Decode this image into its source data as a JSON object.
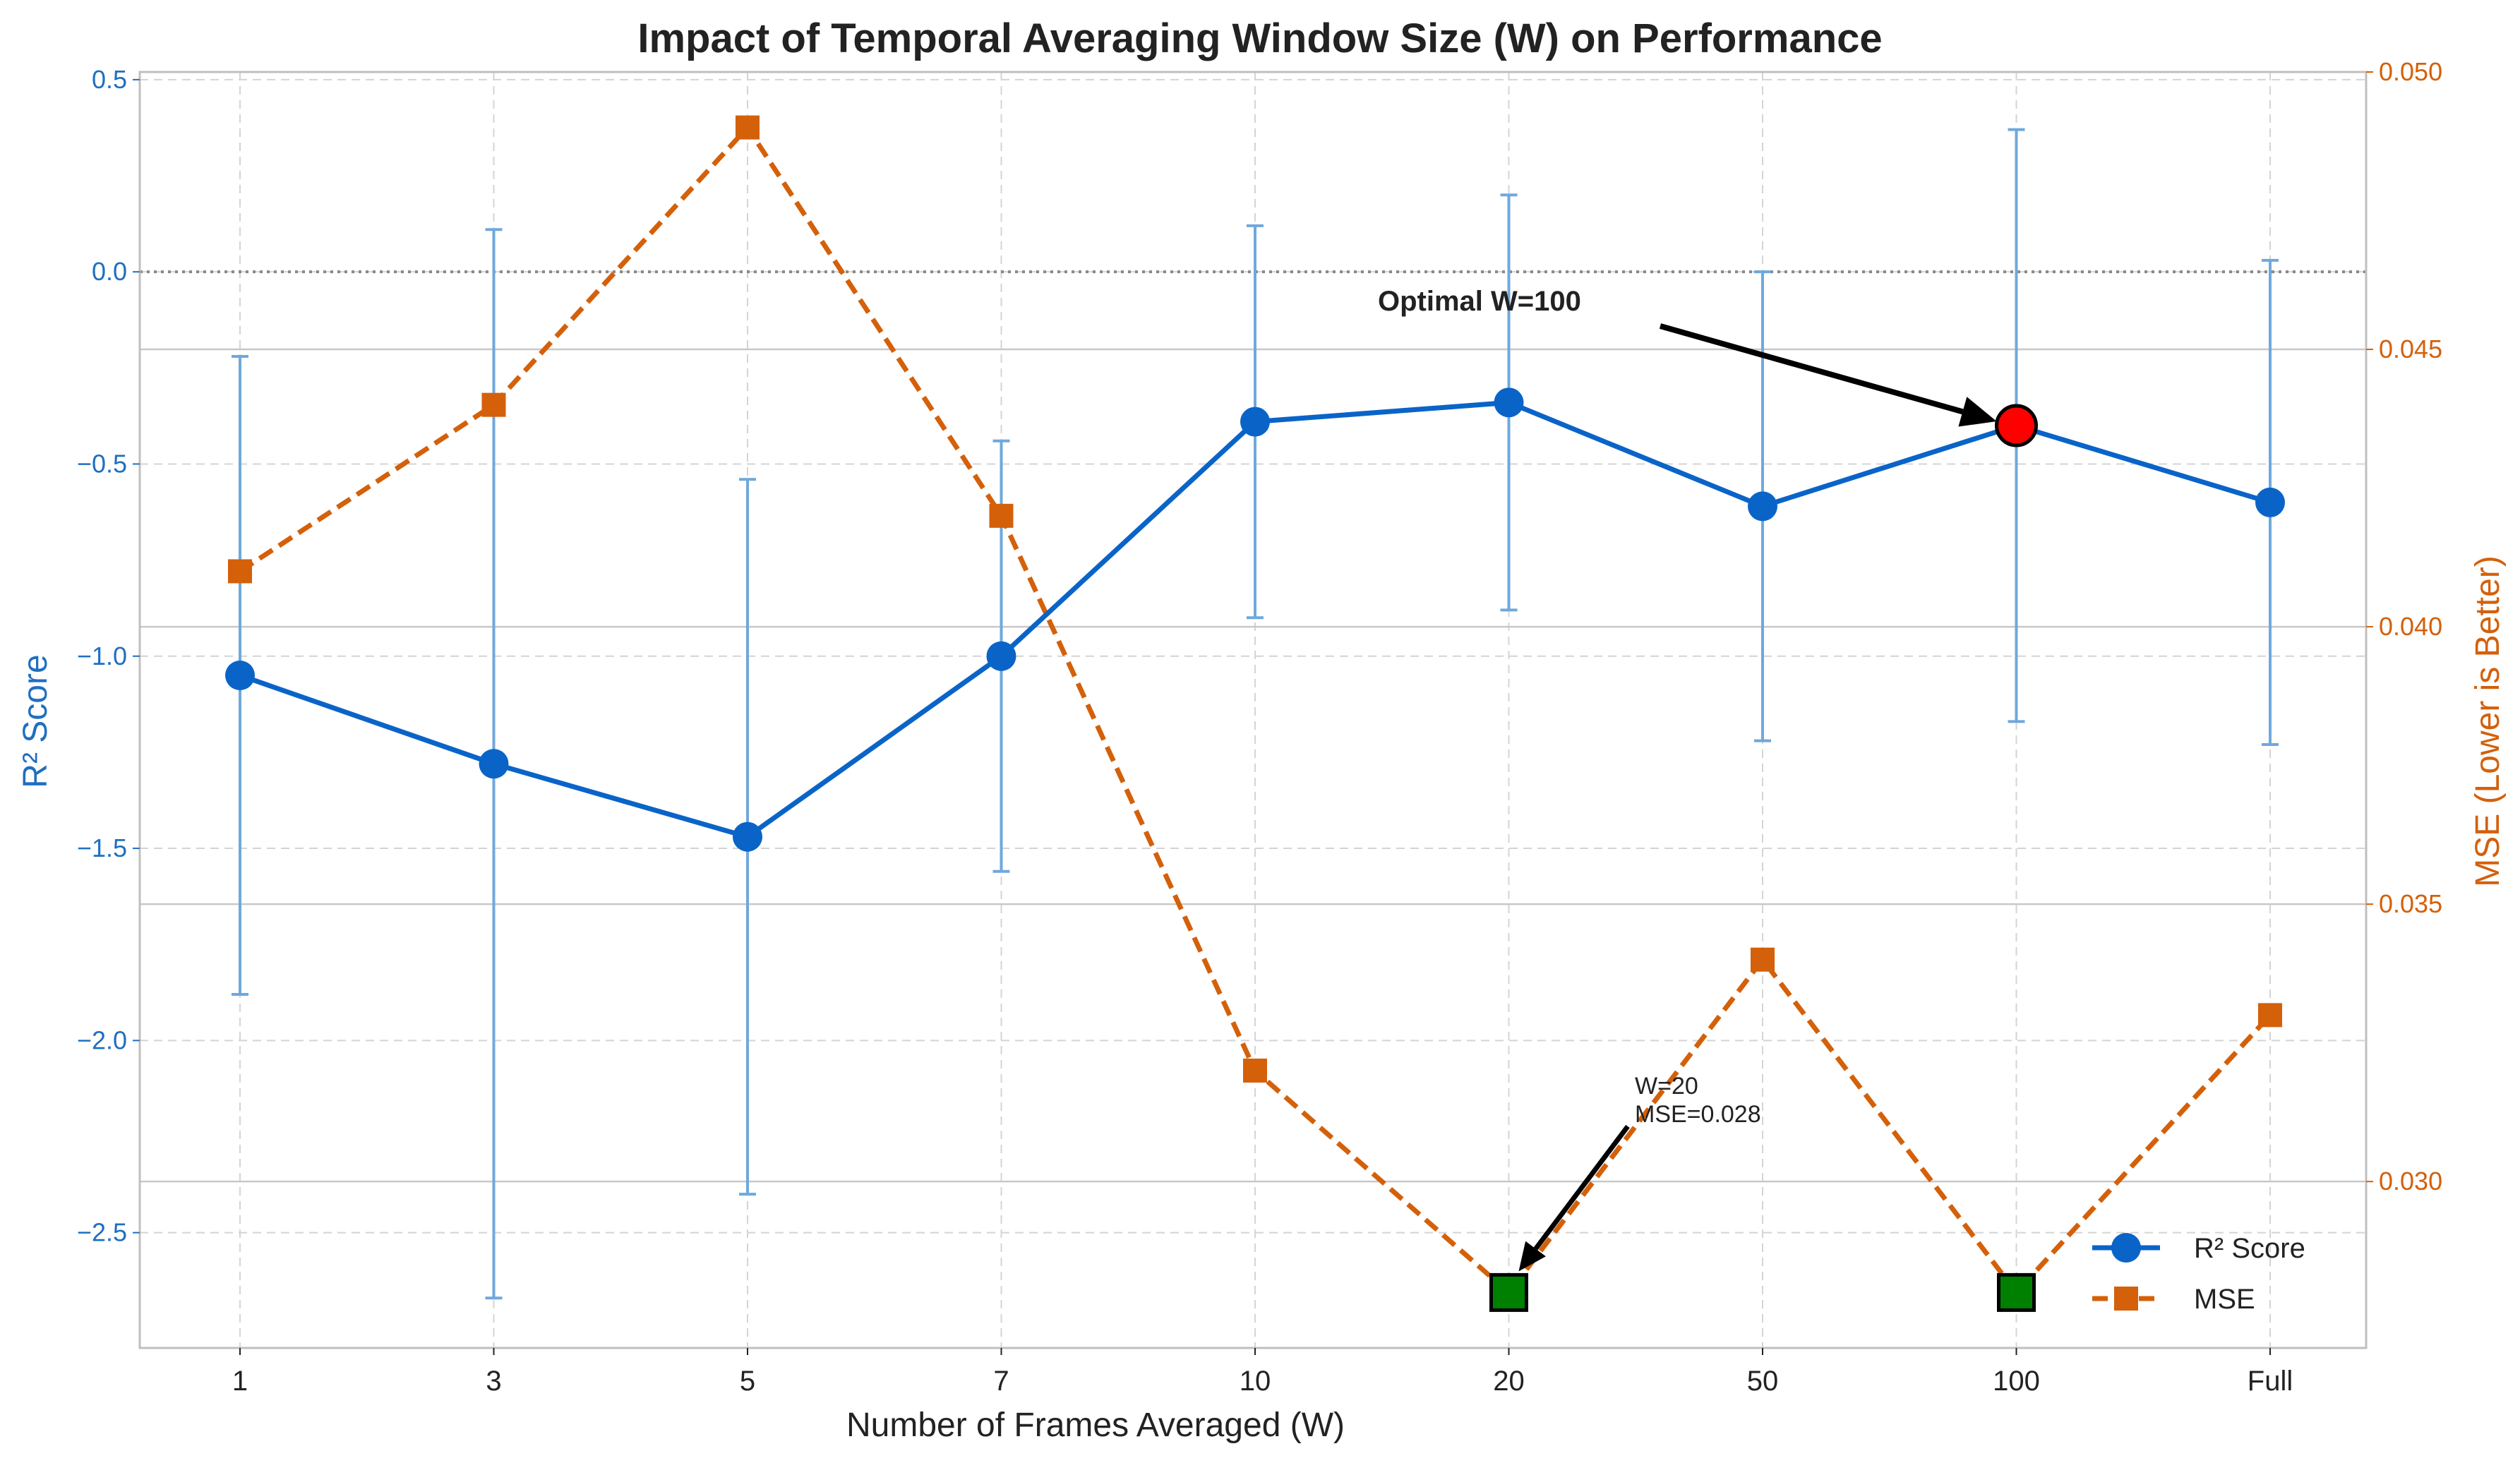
{
  "chart_data": {
    "type": "line",
    "title": "Impact of Temporal Averaging Window Size (W) on Performance",
    "xlabel": "Number of Frames Averaged (W)",
    "categories": [
      "1",
      "3",
      "5",
      "7",
      "10",
      "20",
      "50",
      "100",
      "Full"
    ],
    "y_left": {
      "label": "R² Score",
      "ylim": [
        -2.8,
        0.52
      ],
      "ticks": [
        0.5,
        0.0,
        -0.5,
        -1.0,
        -1.5,
        -2.0,
        -2.5
      ],
      "tick_labels": [
        "0.5",
        "0.0",
        "−0.5",
        "−1.0",
        "−1.5",
        "−2.0",
        "−2.5"
      ],
      "color": "#1f6fc0"
    },
    "y_right": {
      "label": "MSE (Lower is Better)",
      "ylim": [
        0.027,
        0.05
      ],
      "ticks": [
        0.03,
        0.035,
        0.04,
        0.045,
        0.05
      ],
      "tick_labels": [
        "0.030",
        "0.035",
        "0.040",
        "0.045",
        "0.050"
      ],
      "color": "#d4600a"
    },
    "series": [
      {
        "name": "R² Score",
        "axis": "left",
        "values": [
          -1.05,
          -1.28,
          -1.47,
          -1.0,
          -0.39,
          -0.34,
          -0.61,
          -0.4,
          -0.6
        ],
        "error": [
          0.83,
          1.39,
          0.93,
          0.56,
          0.51,
          0.54,
          0.61,
          0.77,
          0.63
        ],
        "color": "#0a64c8",
        "marker": "circle",
        "linestyle": "solid"
      },
      {
        "name": "MSE",
        "axis": "right",
        "values": [
          0.041,
          0.044,
          0.049,
          0.042,
          0.032,
          0.028,
          0.034,
          0.028,
          0.033
        ],
        "color": "#d4600a",
        "marker": "square",
        "linestyle": "dashed"
      }
    ],
    "highlights": [
      {
        "series": "R² Score",
        "index": 7,
        "color": "#ff0000"
      },
      {
        "series": "MSE",
        "index": 5,
        "color": "#008000"
      },
      {
        "series": "MSE",
        "index": 7,
        "color": "#008000"
      }
    ],
    "annotations": [
      {
        "text": "Optimal W=100",
        "target_series": "R² Score",
        "target_index": 7
      },
      {
        "lines": [
          "W=20",
          "MSE=0.028"
        ],
        "target_series": "MSE",
        "target_index": 5
      }
    ],
    "reference_line": {
      "axis": "left",
      "value": 0.0,
      "style": "dotted",
      "color": "#888888"
    },
    "grid": true,
    "legend": {
      "placement": "lower-right",
      "entries": [
        "R² Score",
        "MSE"
      ]
    }
  }
}
